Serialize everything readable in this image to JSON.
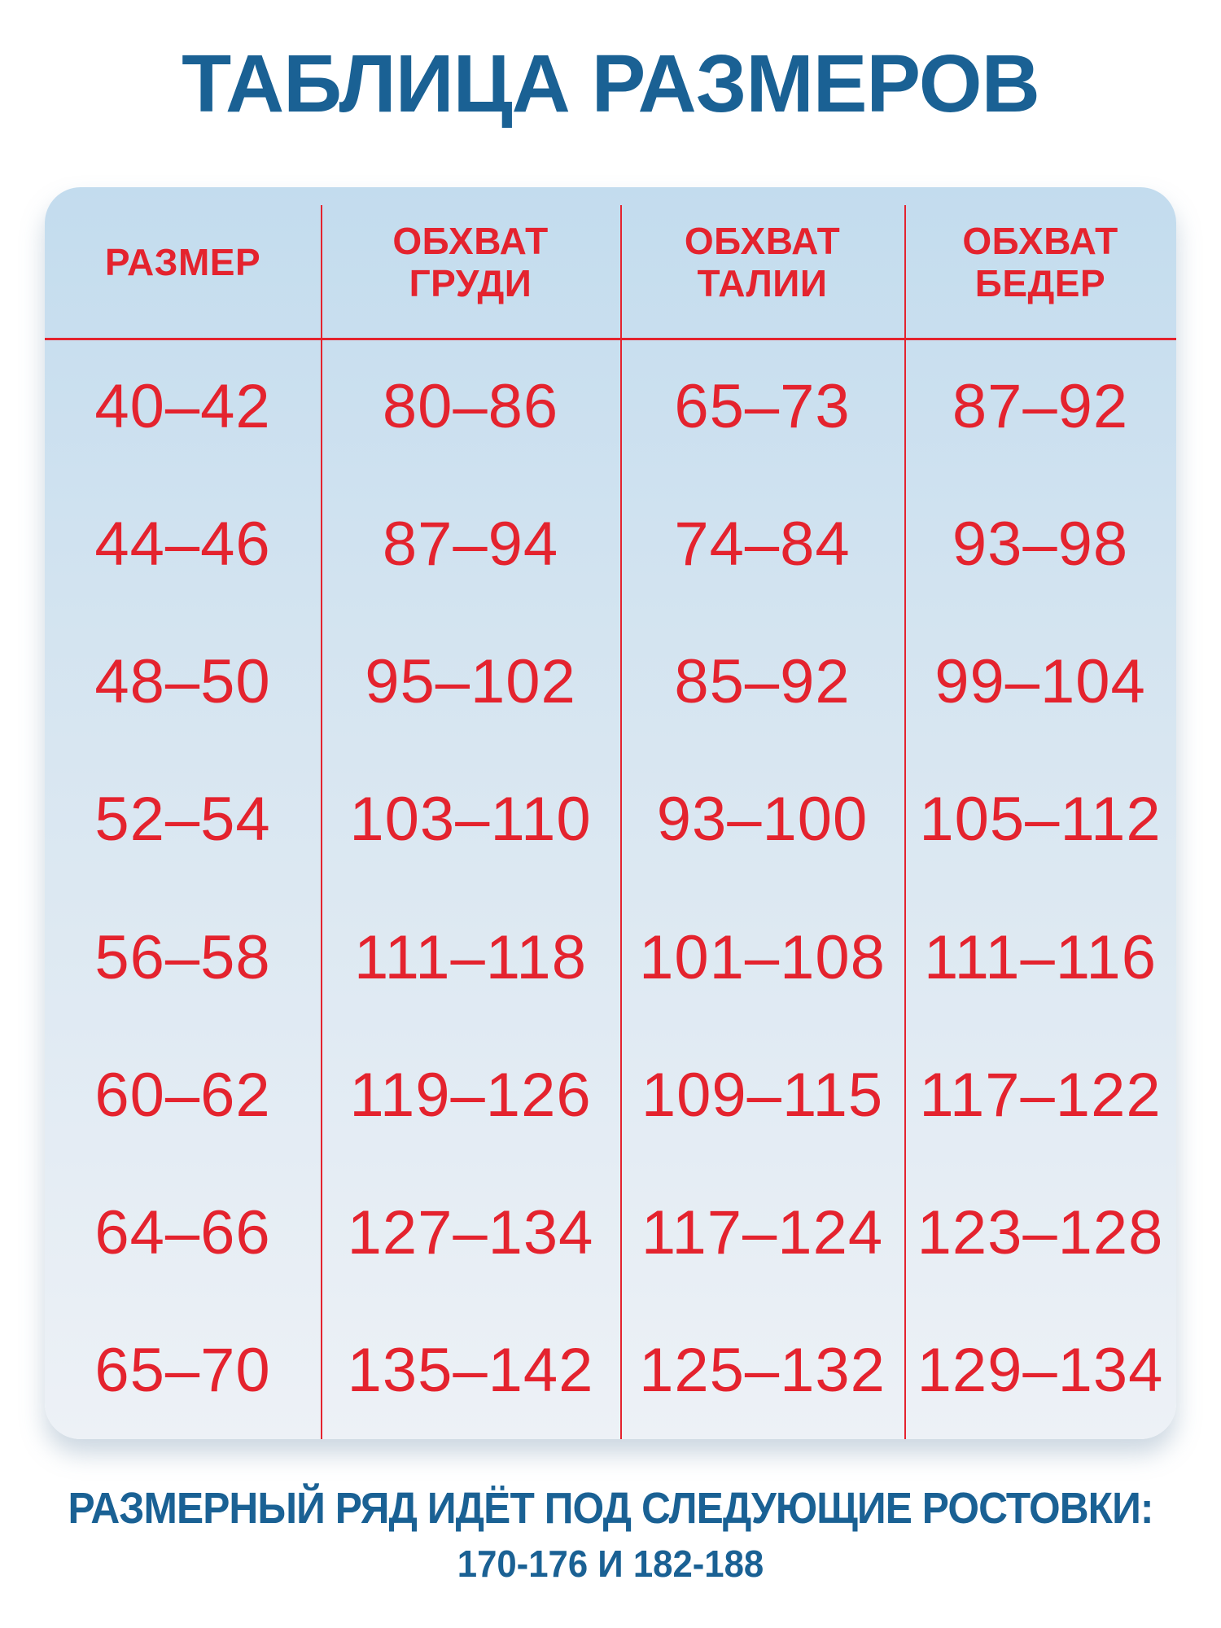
{
  "title": "ТАБЛИЦА РАЗМЕРОВ",
  "colors": {
    "accent_blue": "#1A6194",
    "accent_red": "#E4232E",
    "table_bg_top": "#C3DCEE",
    "table_bg_mid": "#D8E6F1",
    "table_bg_bottom": "#EDF1F6"
  },
  "table": {
    "headers": [
      "РАЗМЕР",
      "ОБХВАТ\nГРУДИ",
      "ОБХВАТ\nТАЛИИ",
      "ОБХВАТ\nБЕДЕР"
    ],
    "rows": [
      [
        "40–42",
        "80–86",
        "65–73",
        "87–92"
      ],
      [
        "44–46",
        "87–94",
        "74–84",
        "93–98"
      ],
      [
        "48–50",
        "95–102",
        "85–92",
        "99–104"
      ],
      [
        "52–54",
        "103–110",
        "93–100",
        "105–112"
      ],
      [
        "56–58",
        "111–118",
        "101–108",
        "111–116"
      ],
      [
        "60–62",
        "119–126",
        "109–115",
        "117–122"
      ],
      [
        "64–66",
        "127–134",
        "117–124",
        "123–128"
      ],
      [
        "65–70",
        "135–142",
        "125–132",
        "129–134"
      ]
    ]
  },
  "footer": {
    "line1": "РАЗМЕРНЫЙ РЯД ИДЁТ ПОД СЛЕДУЮЩИЕ РОСТОВКИ:",
    "line2": "170-176 И 182-188"
  },
  "chart_data": {
    "type": "table",
    "title": "ТАБЛИЦА РАЗМЕРОВ",
    "columns": [
      "РАЗМЕР",
      "ОБХВАТ ГРУДИ",
      "ОБХВАТ ТАЛИИ",
      "ОБХВАТ БЕДЕР"
    ],
    "rows": [
      [
        "40–42",
        "80–86",
        "65–73",
        "87–92"
      ],
      [
        "44–46",
        "87–94",
        "74–84",
        "93–98"
      ],
      [
        "48–50",
        "95–102",
        "85–92",
        "99–104"
      ],
      [
        "52–54",
        "103–110",
        "93–100",
        "105–112"
      ],
      [
        "56–58",
        "111–118",
        "101–108",
        "111–116"
      ],
      [
        "60–62",
        "119–126",
        "109–115",
        "117–122"
      ],
      [
        "64–66",
        "127–134",
        "117–124",
        "123–128"
      ],
      [
        "65–70",
        "135–142",
        "125–132",
        "129–134"
      ]
    ],
    "note": "РАЗМЕРНЫЙ РЯД ИДЁТ ПОД СЛЕДУЮЩИЕ РОСТОВКИ: 170-176 И 182-188"
  }
}
